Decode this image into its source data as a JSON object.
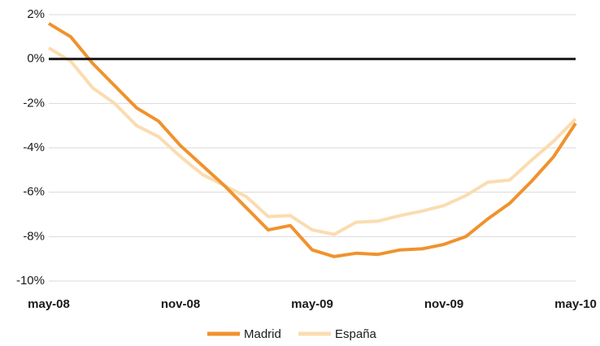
{
  "chart_data": {
    "type": "line",
    "categories": [
      "may-08",
      null,
      null,
      null,
      null,
      null,
      "nov-08",
      null,
      null,
      null,
      null,
      null,
      "may-09",
      null,
      null,
      null,
      null,
      null,
      "nov-09",
      null,
      null,
      null,
      null,
      null,
      "may-10"
    ],
    "series": [
      {
        "name": "Madrid",
        "color": "#f0922e",
        "values": [
          1.6,
          1.0,
          -0.2,
          -1.2,
          -2.2,
          -2.8,
          -3.9,
          -4.8,
          -5.7,
          -6.7,
          -7.7,
          -7.5,
          -8.6,
          -8.9,
          -8.75,
          -8.8,
          -8.6,
          -8.55,
          -8.35,
          -8.0,
          -7.2,
          -6.5,
          -5.5,
          -4.4,
          -2.9
        ]
      },
      {
        "name": "España",
        "color": "#fbdcb0",
        "values": [
          0.5,
          -0.1,
          -1.3,
          -2.0,
          -3.0,
          -3.5,
          -4.4,
          -5.2,
          -5.7,
          -6.2,
          -7.1,
          -7.05,
          -7.7,
          -7.9,
          -7.35,
          -7.3,
          -7.05,
          -6.85,
          -6.6,
          -6.15,
          -5.55,
          -5.45,
          -4.55,
          -3.7,
          -2.7
        ]
      }
    ],
    "ylim": [
      -10,
      2
    ],
    "yticks": [
      {
        "value": -10,
        "label": "-10%"
      },
      {
        "value": -8,
        "label": "-8%"
      },
      {
        "value": -6,
        "label": "-6%"
      },
      {
        "value": -4,
        "label": "-4%"
      },
      {
        "value": -2,
        "label": "-2%"
      },
      {
        "value": 0,
        "label": "0%"
      },
      {
        "value": 2,
        "label": "2%"
      }
    ],
    "grid": true,
    "legend": "bottom"
  }
}
